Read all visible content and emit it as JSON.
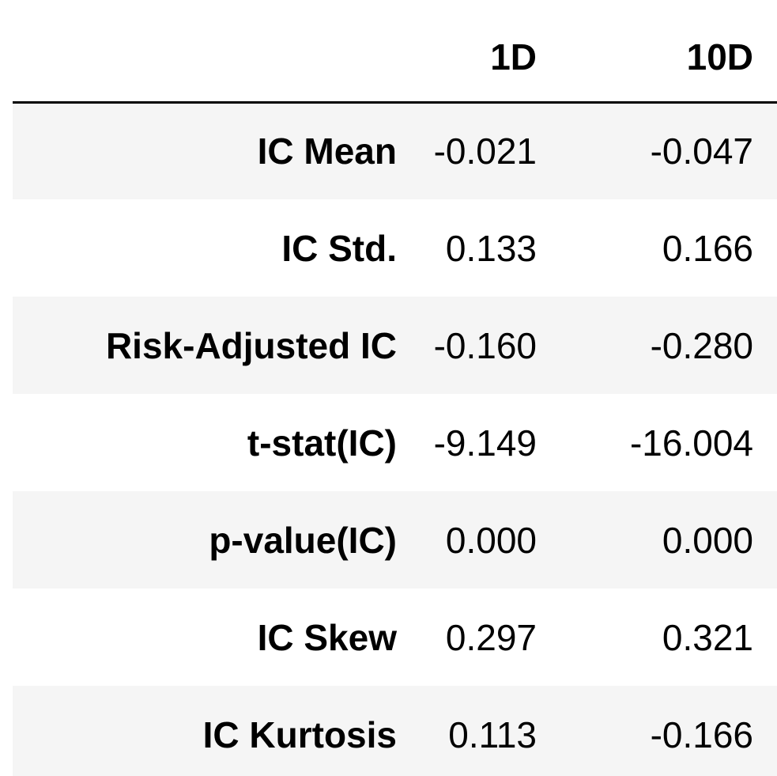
{
  "chart_data": {
    "type": "table",
    "columns": [
      "1D",
      "10D"
    ],
    "rows": [
      {
        "label": "IC Mean",
        "values": [
          "-0.021",
          "-0.047"
        ]
      },
      {
        "label": "IC Std.",
        "values": [
          "0.133",
          "0.166"
        ]
      },
      {
        "label": "Risk-Adjusted IC",
        "values": [
          "-0.160",
          "-0.280"
        ]
      },
      {
        "label": "t-stat(IC)",
        "values": [
          "-9.149",
          "-16.004"
        ]
      },
      {
        "label": "p-value(IC)",
        "values": [
          "0.000",
          "0.000"
        ]
      },
      {
        "label": "IC Skew",
        "values": [
          "0.297",
          "0.321"
        ]
      },
      {
        "label": "IC Kurtosis",
        "values": [
          "0.113",
          "-0.166"
        ]
      }
    ]
  },
  "colors": {
    "stripe": "#f5f5f5",
    "background": "#ffffff",
    "text": "#000000",
    "header_rule": "#000000"
  }
}
